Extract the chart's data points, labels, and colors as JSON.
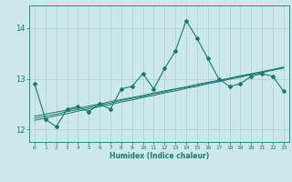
{
  "x": [
    0,
    1,
    2,
    3,
    4,
    5,
    6,
    7,
    8,
    9,
    10,
    11,
    12,
    13,
    14,
    15,
    16,
    17,
    18,
    19,
    20,
    21,
    22,
    23
  ],
  "main_line": [
    12.9,
    12.2,
    12.05,
    12.4,
    12.45,
    12.35,
    12.5,
    12.4,
    12.8,
    12.85,
    13.1,
    12.8,
    13.2,
    13.55,
    14.15,
    13.8,
    13.4,
    13.0,
    12.85,
    12.9,
    13.05,
    13.1,
    13.05,
    12.75
  ],
  "trend_line1": [
    12.18,
    12.22,
    12.27,
    12.31,
    12.36,
    12.4,
    12.45,
    12.49,
    12.54,
    12.58,
    12.63,
    12.67,
    12.72,
    12.76,
    12.81,
    12.85,
    12.9,
    12.94,
    12.99,
    13.03,
    13.08,
    13.12,
    13.17,
    13.21
  ],
  "trend_line2": [
    12.22,
    12.26,
    12.3,
    12.35,
    12.39,
    12.43,
    12.48,
    12.52,
    12.57,
    12.61,
    12.65,
    12.7,
    12.74,
    12.79,
    12.83,
    12.87,
    12.92,
    12.96,
    13.01,
    13.05,
    13.09,
    13.14,
    13.18,
    13.23
  ],
  "trend_line3": [
    12.26,
    12.3,
    12.34,
    12.38,
    12.42,
    12.46,
    12.5,
    12.55,
    12.59,
    12.63,
    12.67,
    12.72,
    12.76,
    12.8,
    12.84,
    12.89,
    12.93,
    12.97,
    13.01,
    13.06,
    13.1,
    13.14,
    13.18,
    13.23
  ],
  "line_color": "#1a7a6e",
  "bg_color": "#cce8ea",
  "grid_color": "#aacfd2",
  "xlabel": "Humidex (Indice chaleur)",
  "ylim": [
    11.75,
    14.45
  ],
  "xlim": [
    -0.5,
    23.5
  ]
}
